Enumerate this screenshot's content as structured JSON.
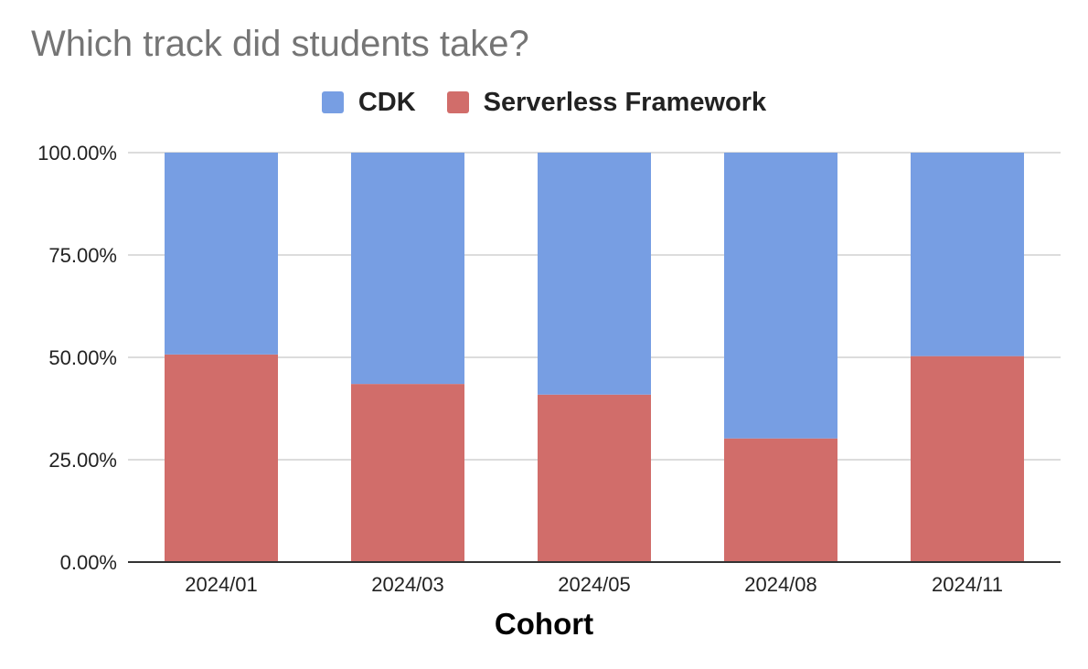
{
  "chart_data": {
    "type": "bar",
    "stacked": true,
    "title": "Which track did students take?",
    "xlabel": "Cohort",
    "ylabel": "",
    "categories": [
      "2024/01",
      "2024/03",
      "2024/05",
      "2024/08",
      "2024/11"
    ],
    "series": [
      {
        "name": "Serverless Framework",
        "color": "#d16d6a",
        "values": [
          50.7,
          43.5,
          40.9,
          30.2,
          50.3
        ]
      },
      {
        "name": "CDK",
        "color": "#779ee3",
        "values": [
          49.3,
          56.5,
          59.1,
          69.8,
          49.7
        ]
      }
    ],
    "legend": {
      "placement": "top",
      "order": [
        "CDK",
        "Serverless Framework"
      ]
    },
    "ylim": [
      0,
      100
    ],
    "yticks": [
      "0.00%",
      "25.00%",
      "50.00%",
      "75.00%",
      "100.00%"
    ],
    "grid": true
  }
}
